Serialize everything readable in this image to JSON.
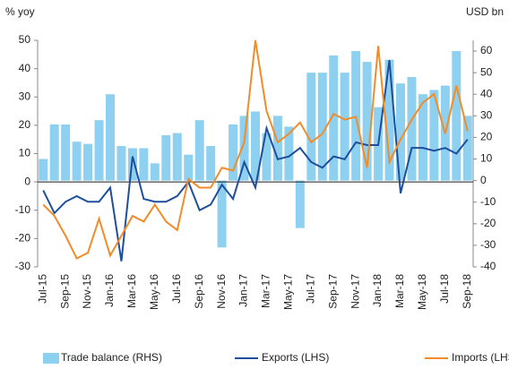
{
  "chart_data": {
    "type": "combo",
    "y_label": "% yoy",
    "y2_label": "USD bn",
    "categories": [
      "Jul-15",
      null,
      "Sep-15",
      null,
      "Nov-15",
      null,
      "Jan-16",
      null,
      "Mar-16",
      null,
      "May-16",
      null,
      "Jul-16",
      null,
      "Sep-16",
      null,
      "Nov-16",
      null,
      "Jan-17",
      null,
      "Mar-17",
      null,
      "May-17",
      null,
      "Jul-17",
      null,
      "Sep-17",
      null,
      "Nov-17",
      null,
      "Jan-18",
      null,
      "Mar-18",
      null,
      "May-18",
      null,
      "Jul-18",
      null,
      "Sep-18"
    ],
    "series": [
      {
        "name": "Trade balance (RHS)",
        "type": "bar",
        "axis": "y2",
        "color": "#8dd0ef",
        "values": [
          10,
          26,
          26,
          18,
          17,
          28,
          40,
          16,
          15,
          15,
          8,
          21,
          22,
          12,
          28,
          16,
          -31,
          26,
          30,
          32,
          22,
          30,
          25,
          -22,
          50,
          50,
          58,
          50,
          60,
          55,
          34,
          56,
          45,
          48,
          40,
          42,
          44,
          60,
          30
        ]
      },
      {
        "name": "Exports (LHS)",
        "type": "line",
        "color": "#1f4e9c",
        "values": [
          -3,
          -11,
          -7,
          -5,
          -7,
          -7,
          -2,
          -28,
          9,
          -6,
          -7,
          -7,
          -5,
          0,
          -10,
          -8,
          -1,
          -6,
          7,
          -2,
          19,
          8,
          9,
          12,
          7,
          5,
          9,
          8,
          14,
          13,
          13,
          43,
          -4,
          12,
          12,
          11,
          12,
          10,
          15
        ]
      },
      {
        "name": "Imports (LHS)",
        "type": "line",
        "color": "#f28c28",
        "values": [
          -8,
          -12,
          -19,
          -27,
          -25,
          -13,
          -26,
          -19,
          -12,
          -14,
          -8,
          -14,
          -17,
          1,
          -2,
          -2,
          5,
          4,
          14,
          50,
          25,
          14,
          17,
          21,
          14,
          17,
          24,
          22,
          23,
          5,
          48,
          7,
          15,
          22,
          28,
          31,
          17,
          34,
          18
        ]
      }
    ],
    "ylim": [
      -30,
      50
    ],
    "yticks": [
      -30,
      -20,
      -10,
      0,
      10,
      20,
      30,
      40,
      50
    ],
    "y2lim": [
      -40,
      65
    ],
    "y2ticks": [
      -40,
      -30,
      -20,
      -10,
      0,
      10,
      20,
      30,
      40,
      50,
      60
    ],
    "legend": "bottom"
  }
}
